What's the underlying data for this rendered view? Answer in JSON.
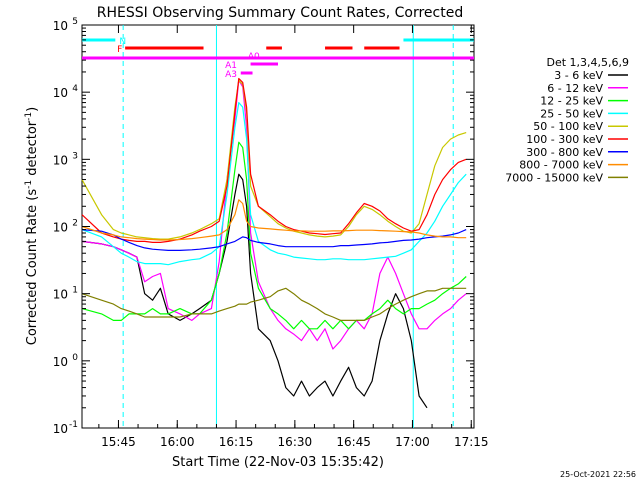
{
  "chart_data": {
    "type": "line",
    "title": "RHESSI Observing Summary Count Rates, Corrected",
    "xlabel": "Start Time (22-Nov-03 15:35:42)",
    "ylabel_main": "Corrected Count Rate (s",
    "ylabel_sup1": "-1",
    "ylabel_mid": " detector",
    "ylabel_sup2": "-1",
    "ylabel_end": ")",
    "footer": "25-Oct-2021 22:56",
    "y_scale": "log",
    "ylim": [
      0.1,
      100000
    ],
    "xlim_minutes": [
      0,
      100
    ],
    "x_ticks": [
      {
        "label": "15:45",
        "min": 9.3
      },
      {
        "label": "16:00",
        "min": 24.3
      },
      {
        "label": "16:15",
        "min": 39.3
      },
      {
        "label": "16:30",
        "min": 54.3
      },
      {
        "label": "16:45",
        "min": 69.3
      },
      {
        "label": "17:00",
        "min": 84.3
      },
      {
        "label": "17:15",
        "min": 99.3
      }
    ],
    "y_ticks": [
      {
        "value": 0.1,
        "base": "10",
        "exp": "-1"
      },
      {
        "value": 1,
        "base": "10",
        "exp": "0"
      },
      {
        "value": 10,
        "base": "10",
        "exp": "1"
      },
      {
        "value": 100,
        "base": "10",
        "exp": "2"
      },
      {
        "value": 1000,
        "base": "10",
        "exp": "3"
      },
      {
        "value": 10000,
        "base": "10",
        "exp": "4"
      },
      {
        "value": 100000,
        "base": "10",
        "exp": "5"
      }
    ],
    "legend_title": "Det 1,3,4,5,6,9",
    "legend_placement": "right",
    "series": [
      {
        "name": "3 - 6 keV",
        "color": "#000000",
        "x": [
          0,
          5,
          8,
          10,
          12,
          14,
          16,
          18,
          20,
          22,
          25,
          28,
          30,
          33,
          35,
          37,
          39,
          40,
          41,
          42,
          43,
          45,
          48,
          50,
          52,
          54,
          56,
          58,
          60,
          62,
          64,
          66,
          68,
          70,
          72,
          74,
          76,
          78,
          80,
          82,
          84,
          86,
          88,
          90,
          92,
          94,
          96,
          98
        ],
        "y": [
          60,
          55,
          50,
          45,
          40,
          35,
          10,
          8,
          12,
          5,
          4,
          5,
          6,
          8,
          20,
          60,
          300,
          600,
          500,
          200,
          20,
          3,
          2,
          1,
          0.4,
          0.3,
          0.5,
          0.3,
          0.4,
          0.5,
          0.3,
          0.5,
          0.8,
          0.4,
          0.3,
          0.5,
          2,
          5,
          10,
          6,
          2,
          0.3,
          0.2,
          null,
          null,
          null,
          null,
          null
        ]
      },
      {
        "name": "6 - 12 keV",
        "color": "#ff00ff",
        "x": [
          0,
          5,
          8,
          10,
          12,
          14,
          16,
          18,
          20,
          22,
          25,
          28,
          30,
          33,
          35,
          37,
          39,
          40,
          41,
          42,
          43,
          45,
          48,
          50,
          52,
          54,
          56,
          58,
          60,
          62,
          64,
          66,
          68,
          70,
          72,
          74,
          76,
          78,
          80,
          82,
          84,
          86,
          88,
          90,
          92,
          94,
          96,
          98
        ],
        "y": [
          60,
          55,
          50,
          45,
          40,
          35,
          15,
          18,
          20,
          6,
          5,
          4,
          5,
          6,
          30,
          500,
          4000,
          15000,
          12000,
          3000,
          80,
          15,
          6,
          4,
          3,
          2.5,
          2,
          3,
          2,
          3,
          1.5,
          2,
          3,
          4,
          3,
          5,
          20,
          35,
          20,
          10,
          5,
          3,
          3,
          4,
          5,
          6,
          8,
          10
        ]
      },
      {
        "name": "12 - 25 keV",
        "color": "#00ff00",
        "x": [
          0,
          5,
          8,
          10,
          12,
          14,
          16,
          18,
          20,
          22,
          25,
          28,
          30,
          33,
          35,
          37,
          39,
          40,
          41,
          42,
          43,
          45,
          48,
          50,
          52,
          54,
          56,
          58,
          60,
          62,
          64,
          66,
          68,
          70,
          72,
          74,
          76,
          78,
          80,
          82,
          84,
          86,
          88,
          90,
          92,
          94,
          96,
          98
        ],
        "y": [
          6,
          5,
          4,
          4,
          5,
          5,
          5,
          6,
          5,
          5,
          6,
          5,
          5,
          8,
          20,
          80,
          700,
          1800,
          1500,
          500,
          40,
          12,
          6,
          5,
          4,
          3,
          4,
          3,
          3,
          4,
          3,
          4,
          3,
          4,
          4,
          5,
          6,
          8,
          6,
          5,
          6,
          6,
          7,
          8,
          10,
          12,
          14,
          18
        ]
      },
      {
        "name": "25 - 50 keV",
        "color": "#00ffff",
        "x": [
          0,
          5,
          8,
          10,
          12,
          14,
          16,
          18,
          20,
          22,
          25,
          28,
          30,
          33,
          35,
          37,
          39,
          40,
          41,
          42,
          43,
          45,
          48,
          50,
          52,
          54,
          56,
          58,
          60,
          62,
          64,
          66,
          68,
          70,
          72,
          74,
          76,
          78,
          80,
          82,
          84,
          86,
          88,
          90,
          92,
          94,
          96,
          98
        ],
        "y": [
          90,
          70,
          50,
          40,
          35,
          30,
          28,
          28,
          28,
          27,
          30,
          32,
          33,
          40,
          50,
          300,
          3000,
          7000,
          6000,
          2000,
          150,
          60,
          45,
          40,
          38,
          35,
          34,
          33,
          32,
          32,
          33,
          33,
          32,
          32,
          32,
          33,
          34,
          35,
          36,
          40,
          45,
          60,
          80,
          120,
          200,
          300,
          450,
          600
        ]
      },
      {
        "name": "50 - 100 keV",
        "color": "#c8c800",
        "x": [
          0,
          5,
          8,
          10,
          12,
          14,
          16,
          18,
          20,
          22,
          25,
          28,
          30,
          33,
          35,
          37,
          39,
          40,
          41,
          42,
          43,
          45,
          48,
          50,
          52,
          54,
          56,
          58,
          60,
          62,
          64,
          66,
          68,
          70,
          72,
          74,
          76,
          78,
          80,
          82,
          84,
          86,
          88,
          90,
          92,
          94,
          96,
          98
        ],
        "y": [
          500,
          150,
          90,
          80,
          75,
          70,
          68,
          66,
          65,
          65,
          70,
          80,
          90,
          110,
          130,
          500,
          6000,
          15000,
          13000,
          5000,
          400,
          200,
          140,
          110,
          95,
          85,
          80,
          75,
          72,
          70,
          72,
          75,
          100,
          150,
          200,
          180,
          150,
          120,
          100,
          85,
          80,
          110,
          300,
          800,
          1500,
          2000,
          2300,
          2500
        ]
      },
      {
        "name": "100 - 300 keV",
        "color": "#ff0000",
        "x": [
          0,
          5,
          8,
          10,
          12,
          14,
          16,
          18,
          20,
          22,
          25,
          28,
          30,
          33,
          35,
          37,
          39,
          40,
          41,
          42,
          43,
          45,
          48,
          50,
          52,
          54,
          56,
          58,
          60,
          62,
          64,
          66,
          68,
          70,
          72,
          74,
          76,
          78,
          80,
          82,
          84,
          86,
          88,
          90,
          92,
          94,
          96,
          98
        ],
        "y": [
          150,
          80,
          70,
          65,
          62,
          60,
          60,
          58,
          58,
          60,
          65,
          75,
          85,
          100,
          120,
          400,
          5000,
          16000,
          14000,
          6000,
          600,
          200,
          150,
          120,
          100,
          90,
          85,
          80,
          78,
          76,
          78,
          80,
          110,
          160,
          220,
          200,
          170,
          130,
          110,
          95,
          85,
          90,
          150,
          300,
          500,
          700,
          900,
          1000
        ]
      },
      {
        "name": "300 - 800 keV",
        "color": "#0000ff",
        "x": [
          0,
          5,
          8,
          10,
          12,
          14,
          16,
          18,
          20,
          22,
          25,
          28,
          30,
          33,
          35,
          37,
          39,
          40,
          41,
          42,
          43,
          45,
          48,
          50,
          52,
          54,
          56,
          58,
          60,
          62,
          64,
          66,
          68,
          70,
          72,
          74,
          76,
          78,
          80,
          82,
          84,
          86,
          88,
          90,
          92,
          94,
          96,
          98
        ],
        "y": [
          90,
          85,
          75,
          65,
          58,
          52,
          48,
          46,
          45,
          44,
          44,
          45,
          46,
          48,
          50,
          55,
          60,
          65,
          70,
          68,
          62,
          58,
          55,
          52,
          50,
          50,
          50,
          50,
          50,
          50,
          50,
          52,
          52,
          53,
          54,
          55,
          57,
          58,
          60,
          62,
          63,
          65,
          68,
          70,
          72,
          75,
          80,
          90
        ]
      },
      {
        "name": "800 - 7000 keV",
        "color": "#ff8c00",
        "x": [
          0,
          5,
          8,
          10,
          12,
          14,
          16,
          18,
          20,
          22,
          25,
          28,
          30,
          33,
          35,
          37,
          39,
          40,
          41,
          42,
          43,
          45,
          48,
          50,
          52,
          54,
          56,
          58,
          60,
          62,
          64,
          66,
          68,
          70,
          72,
          74,
          76,
          78,
          80,
          82,
          84,
          86,
          88,
          90,
          92,
          94,
          96,
          98
        ],
        "y": [
          100,
          80,
          75,
          70,
          68,
          66,
          65,
          64,
          63,
          63,
          64,
          66,
          68,
          72,
          75,
          90,
          150,
          250,
          220,
          120,
          100,
          95,
          92,
          90,
          88,
          86,
          86,
          85,
          85,
          85,
          86,
          86,
          87,
          88,
          88,
          88,
          87,
          86,
          85,
          84,
          83,
          80,
          75,
          72,
          70,
          70,
          68,
          68
        ]
      },
      {
        "name": "7000 - 15000 keV",
        "color": "#808000",
        "x": [
          0,
          5,
          8,
          10,
          12,
          14,
          16,
          18,
          20,
          22,
          25,
          28,
          30,
          33,
          35,
          37,
          39,
          40,
          41,
          42,
          43,
          45,
          48,
          50,
          52,
          54,
          56,
          58,
          60,
          62,
          64,
          66,
          68,
          70,
          72,
          74,
          76,
          78,
          80,
          82,
          84,
          86,
          88,
          90,
          92,
          94,
          96,
          98
        ],
        "y": [
          10,
          8,
          7,
          6,
          5.5,
          5,
          4.5,
          4.5,
          4.5,
          4.5,
          4.5,
          5,
          5,
          5,
          5.5,
          6,
          6.5,
          7,
          7,
          7,
          7.5,
          8,
          9,
          11,
          12,
          10,
          8,
          7,
          6,
          5,
          4.5,
          4,
          4,
          4,
          4,
          4.5,
          5,
          6,
          7,
          8,
          9,
          10,
          11,
          11,
          12,
          12,
          12,
          12
        ]
      }
    ],
    "state_bars": [
      {
        "label": "N",
        "color": "#00ffff",
        "segments": [
          [
            0,
            8.5
          ],
          [
            82,
            100
          ]
        ],
        "row": 0
      },
      {
        "label": "F",
        "color": "#ff0000",
        "segments": [
          [
            11,
            31
          ],
          [
            47,
            51
          ],
          [
            62,
            69
          ],
          [
            72,
            81
          ]
        ],
        "row": 1
      },
      {
        "label": "",
        "color": "#ff00ff",
        "segments": [
          [
            0,
            100
          ]
        ],
        "row": 2
      }
    ],
    "attenuator_labels": [
      {
        "text": "A0",
        "color": "#ff00ff"
      },
      {
        "text": "A1",
        "color": "#ff00ff"
      },
      {
        "text": "A3",
        "color": "#ff00ff"
      }
    ],
    "vlines_solid_min": [
      34.3,
      84.5
    ],
    "vlines_dashed_min": [
      10.5,
      94.7
    ],
    "grid": false
  }
}
